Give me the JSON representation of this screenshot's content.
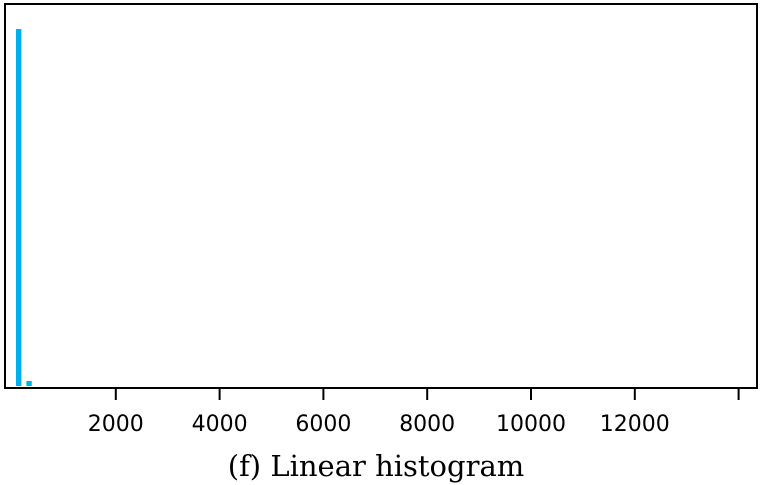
{
  "chart_data": {
    "type": "bar",
    "caption": "(f) Linear histogram",
    "title": "",
    "xlabel": "",
    "ylabel": "",
    "xlim": [
      0,
      14000
    ],
    "x_ticks": [
      2000,
      4000,
      6000,
      8000,
      10000,
      12000,
      14000
    ],
    "x_tick_labels": [
      "2000",
      "4000",
      "6000",
      "8000",
      "10000",
      "12000",
      ""
    ],
    "bin_width": 200,
    "bins": [
      {
        "x_start": 0,
        "x_end": 200,
        "relative_height": 1.0
      },
      {
        "x_start": 200,
        "x_end": 400,
        "relative_height": 0.014
      }
    ],
    "y_axis_labels_shown": false,
    "grid": false,
    "legend": "none",
    "bar_color": "#00aeef"
  }
}
